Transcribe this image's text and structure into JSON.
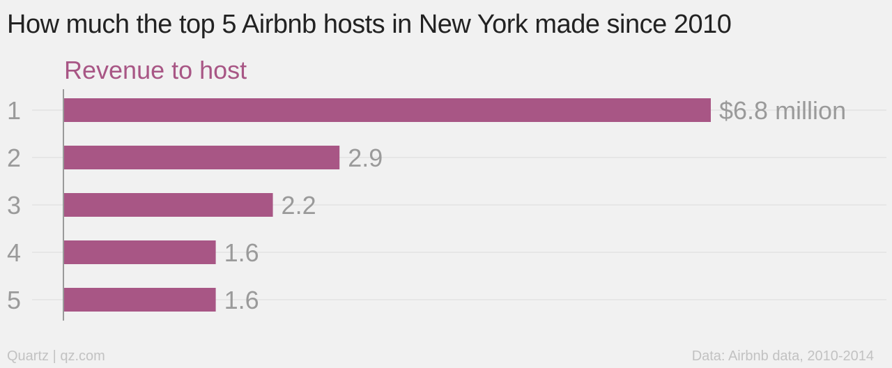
{
  "title": "How much the top 5 Airbnb hosts in New York made since 2010",
  "footer": {
    "credit": "Quartz | qz.com",
    "source": "Data: Airbnb data, 2010-2014"
  },
  "colors": {
    "bar": "#a85685",
    "series_label": "#a85685",
    "value_label": "#9a9a9a",
    "category_label": "#9a9a9a",
    "axis": "#9a9a9a",
    "gridline": "#e2e2e2"
  },
  "chart_data": {
    "type": "bar",
    "orientation": "horizontal",
    "series_label": "Revenue to host",
    "categories": [
      "1",
      "2",
      "3",
      "4",
      "5"
    ],
    "series": [
      {
        "name": "Revenue to host",
        "values": [
          6.8,
          2.9,
          2.2,
          1.6,
          1.6
        ]
      }
    ],
    "value_labels": [
      "$6.8 million",
      "2.9",
      "2.2",
      "1.6",
      "1.6"
    ],
    "xlim": [
      0,
      6.8
    ],
    "grid": true,
    "legend": "none"
  }
}
